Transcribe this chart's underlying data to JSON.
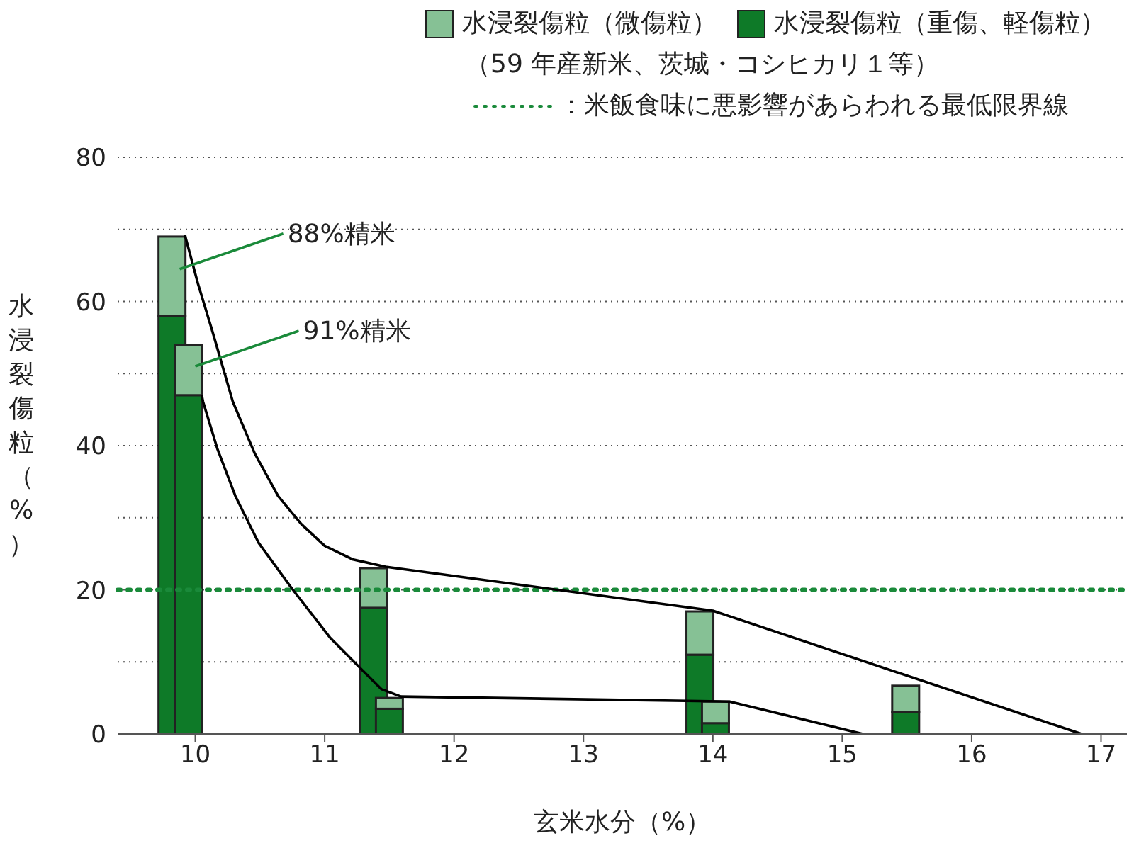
{
  "chart_data": {
    "type": "bar",
    "stacked": true,
    "subtitle": "（59 年産新米、茨城・コシヒカリ１等）",
    "xlabel": "玄米水分（%）",
    "ylabel": "水浸裂傷粒（%）",
    "x": [
      9.82,
      9.95,
      11.38,
      11.5,
      13.9,
      14.02,
      15.49
    ],
    "series": [
      {
        "name": "水浸裂傷粒（重傷、軽傷粒）",
        "color": "#0e7a28",
        "values": [
          58,
          47,
          17.5,
          3.5,
          11,
          1.5,
          3
        ]
      },
      {
        "name": "水浸裂傷粒（微傷粒）",
        "color": "#86c195",
        "values": [
          11,
          7,
          5.5,
          1.5,
          6,
          3,
          3.7
        ]
      },
      {
        "type": "line",
        "color": "#000000",
        "x": [
          9.92,
          10.02,
          10.13,
          10.29,
          10.46,
          10.64,
          10.82,
          11.0,
          11.22,
          11.47,
          14.0,
          16.85
        ],
        "values": [
          69.2,
          62.5,
          56.0,
          46.1,
          38.9,
          33.0,
          29.1,
          26.1,
          24.2,
          23.2,
          17.1,
          0
        ]
      },
      {
        "type": "line",
        "color": "#000000",
        "x": [
          10.05,
          10.06,
          10.17,
          10.31,
          10.49,
          10.75,
          11.04,
          11.26,
          11.44,
          11.59,
          14.13,
          15.16
        ],
        "values": [
          47,
          46.1,
          39.6,
          33.0,
          26.5,
          20.1,
          13.4,
          9.4,
          6.2,
          5.2,
          4.5,
          0
        ]
      }
    ],
    "xlim": [
      9.4,
      17.2
    ],
    "xticks": [
      10,
      11,
      12,
      13,
      14,
      15,
      16,
      17
    ],
    "ylim": [
      0,
      80
    ],
    "yticks": [
      0,
      {
        "value": 10,
        "label": null
      },
      20,
      {
        "value": 30,
        "label": null
      },
      40,
      {
        "value": 50,
        "label": null
      },
      60,
      {
        "value": 70,
        "label": null
      },
      80
    ],
    "grid": "y",
    "legend": "top right",
    "marker": "none",
    "ref_lines": [
      {
        "axis": "y",
        "value": 20,
        "label": "：米飯食味に悪影響があらわれる最低限界線",
        "color": "#1a8a3a",
        "line_style": "dotted"
      }
    ],
    "annotations": [
      {
        "text": "88%精米",
        "x": 9.88,
        "y": 64.5
      },
      {
        "text": "91%精米",
        "x": 10.0,
        "y": 51
      }
    ]
  }
}
